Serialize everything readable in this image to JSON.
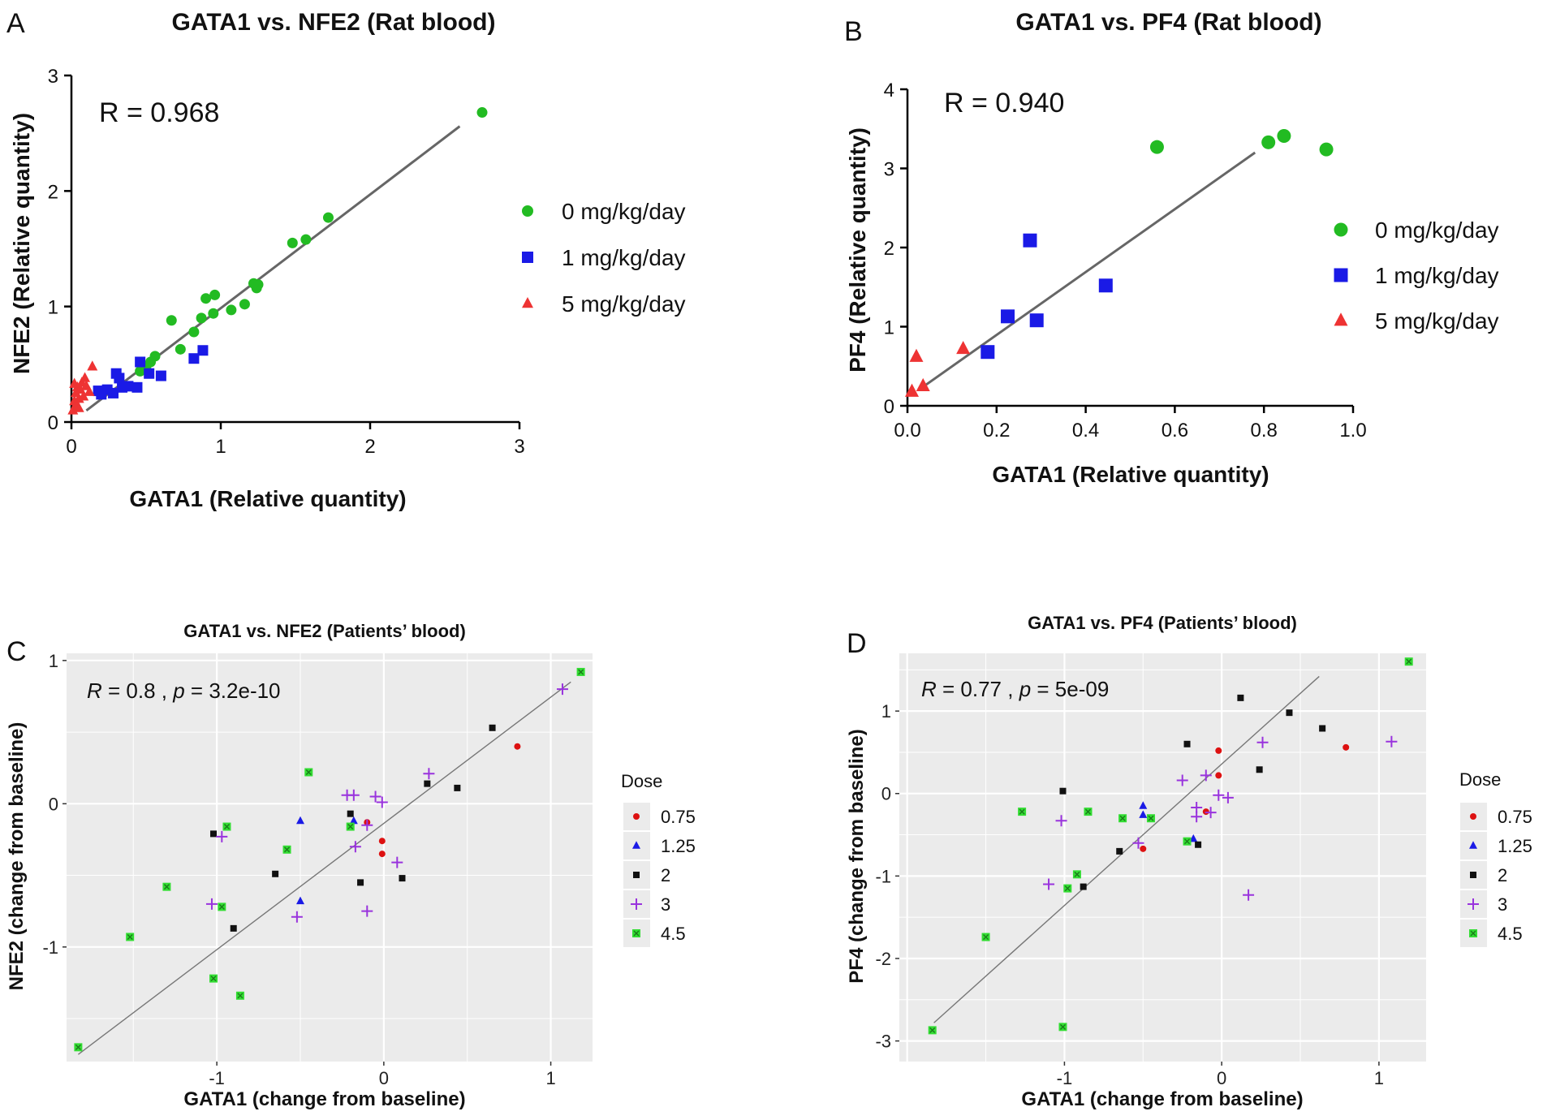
{
  "chart_data": [
    {
      "type": "scatter",
      "letter": "A",
      "title": "GATA1 vs. NFE2 (Rat blood)",
      "xlabel": "GATA1 (Relative quantity)",
      "ylabel": "NFE2 (Relative quantity)",
      "xlim": [
        0,
        3
      ],
      "ylim": [
        0,
        3
      ],
      "xticks": [
        "0",
        "1",
        "2",
        "3"
      ],
      "yticks": [
        "0",
        "1",
        "2",
        "3"
      ],
      "stat": "R = 0.968",
      "fit": [
        [
          0.1,
          0.1
        ],
        [
          2.6,
          2.56
        ]
      ],
      "series": [
        {
          "name": "0 mg/kg/day",
          "color": "#22bb22",
          "marker": "circle",
          "x": [
            2.75,
            1.72,
            1.57,
            1.48,
            1.25,
            1.24,
            1.22,
            1.16,
            1.07,
            0.96,
            0.95,
            0.9,
            0.87,
            0.82,
            0.73,
            0.67,
            0.56,
            0.53,
            0.5,
            0.46
          ],
          "y": [
            2.68,
            1.77,
            1.58,
            1.55,
            1.19,
            1.16,
            1.2,
            1.02,
            0.97,
            1.1,
            0.94,
            1.07,
            0.9,
            0.78,
            0.63,
            0.88,
            0.57,
            0.52,
            0.48,
            0.44
          ]
        },
        {
          "name": "1 mg/kg/day",
          "color": "#1a1ae6",
          "marker": "square",
          "x": [
            0.88,
            0.82,
            0.6,
            0.52,
            0.46,
            0.44,
            0.38,
            0.32,
            0.3,
            0.28,
            0.24,
            0.2,
            0.18,
            0.34
          ],
          "y": [
            0.62,
            0.55,
            0.4,
            0.42,
            0.52,
            0.3,
            0.31,
            0.38,
            0.42,
            0.25,
            0.28,
            0.24,
            0.27,
            0.3
          ]
        },
        {
          "name": "5 mg/kg/day",
          "color": "#ee3333",
          "marker": "triangle",
          "x": [
            0.01,
            0.02,
            0.03,
            0.03,
            0.04,
            0.05,
            0.06,
            0.07,
            0.08,
            0.09,
            0.1,
            0.12,
            0.14,
            0.02,
            0.05
          ],
          "y": [
            0.1,
            0.18,
            0.25,
            0.14,
            0.3,
            0.2,
            0.28,
            0.34,
            0.22,
            0.38,
            0.31,
            0.26,
            0.48,
            0.33,
            0.12
          ]
        }
      ]
    },
    {
      "type": "scatter",
      "letter": "B",
      "title": "GATA1 vs. PF4 (Rat blood)",
      "xlabel": "GATA1 (Relative quantity)",
      "ylabel": "PF4 (Relative quantity)",
      "xlim": [
        0,
        1.0
      ],
      "ylim": [
        0,
        4
      ],
      "xticks": [
        "0.0",
        "0.2",
        "0.4",
        "0.6",
        "0.8",
        "1.0"
      ],
      "yticks": [
        "0",
        "1",
        "2",
        "3",
        "4"
      ],
      "stat": "R = 0.940",
      "fit": [
        [
          0.03,
          0.22
        ],
        [
          0.78,
          3.2
        ]
      ],
      "series": [
        {
          "name": "0 mg/kg/day",
          "color": "#22bb22",
          "marker": "circle",
          "x": [
            0.56,
            0.81,
            0.845,
            0.94
          ],
          "y": [
            3.27,
            3.33,
            3.41,
            3.24
          ]
        },
        {
          "name": "1 mg/kg/day",
          "color": "#1a1ae6",
          "marker": "square",
          "x": [
            0.18,
            0.225,
            0.275,
            0.29,
            0.445
          ],
          "y": [
            0.68,
            1.13,
            2.09,
            1.08,
            1.52
          ]
        },
        {
          "name": "5 mg/kg/day",
          "color": "#ee3333",
          "marker": "triangle",
          "x": [
            0.01,
            0.02,
            0.035,
            0.125
          ],
          "y": [
            0.18,
            0.62,
            0.25,
            0.72
          ]
        }
      ]
    },
    {
      "type": "scatter",
      "letter": "C",
      "title": "GATA1 vs. NFE2 (Patients’ blood)",
      "xlabel": "GATA1 (change from baseline)",
      "ylabel": "NFE2 (change from baseline)",
      "xlim": [
        -1.9,
        1.25
      ],
      "ylim": [
        -1.8,
        1.05
      ],
      "xticks": [
        -1,
        0,
        1
      ],
      "xticklabels": [
        "-1",
        "0",
        "1"
      ],
      "yticks": [
        -1,
        0,
        1
      ],
      "yticklabels": [
        "-1",
        "0",
        "1"
      ],
      "stat_r": "R = 0.8 , ",
      "stat_p": "p = 3.2e-10",
      "fit": [
        [
          -1.83,
          -1.75
        ],
        [
          1.12,
          0.85
        ]
      ],
      "legend_title": "Dose",
      "series": [
        {
          "name": "0.75",
          "color": "#dd1111",
          "marker": "dot",
          "x": [
            0.8,
            -0.1,
            -0.01,
            -0.01
          ],
          "y": [
            0.4,
            -0.13,
            -0.26,
            -0.35
          ]
        },
        {
          "name": "1.25",
          "color": "#1a1ae6",
          "marker": "triangle",
          "x": [
            -0.5,
            -0.18,
            -0.5
          ],
          "y": [
            -0.12,
            -0.12,
            -0.68
          ]
        },
        {
          "name": "2",
          "color": "#111111",
          "marker": "square",
          "x": [
            0.65,
            0.26,
            0.44,
            -0.2,
            -1.02,
            -0.65,
            -0.9,
            -0.14,
            0.11
          ],
          "y": [
            0.53,
            0.14,
            0.11,
            -0.07,
            -0.21,
            -0.49,
            -0.87,
            -0.55,
            -0.52
          ]
        },
        {
          "name": "3",
          "color": "#9933dd",
          "marker": "plus",
          "x": [
            1.07,
            0.27,
            -0.22,
            -0.18,
            -0.05,
            -0.01,
            -0.1,
            -0.17,
            -0.97,
            -1.03,
            -0.52,
            -0.1,
            0.08
          ],
          "y": [
            0.8,
            0.21,
            0.06,
            0.06,
            0.05,
            0.01,
            -0.15,
            -0.3,
            -0.23,
            -0.7,
            -0.79,
            -0.75,
            -0.41
          ]
        },
        {
          "name": "4.5",
          "color": "#33dd33",
          "marker": "square-x",
          "x": [
            1.18,
            -0.45,
            -0.2,
            -0.94,
            -0.58,
            -1.3,
            -0.97,
            -1.52,
            -1.02,
            -0.86,
            -1.83
          ],
          "y": [
            0.92,
            0.22,
            -0.16,
            -0.16,
            -0.32,
            -0.58,
            -0.72,
            -0.93,
            -1.22,
            -1.34,
            -1.7
          ]
        }
      ]
    },
    {
      "type": "scatter",
      "letter": "D",
      "title": "GATA1 vs. PF4 (Patients’ blood)",
      "xlabel": "GATA1 (change from baseline)",
      "ylabel": "PF4 (change from baseline)",
      "xlim": [
        -2.05,
        1.3
      ],
      "ylim": [
        -3.25,
        1.7
      ],
      "xticks": [
        -1,
        0,
        1
      ],
      "xticklabels": [
        "-1",
        "0",
        "1"
      ],
      "yticks": [
        -3,
        -2,
        -1,
        0,
        1
      ],
      "yticklabels": [
        "-3",
        "-2",
        "-1",
        "0",
        "1"
      ],
      "stat_r": "R = 0.77 , ",
      "stat_p": "p = 5e-09",
      "fit": [
        [
          -1.83,
          -2.78
        ],
        [
          0.62,
          1.42
        ]
      ],
      "legend_title": "Dose",
      "series": [
        {
          "name": "0.75",
          "color": "#dd1111",
          "marker": "dot",
          "x": [
            0.79,
            -0.02,
            -0.02,
            -0.5,
            -0.1
          ],
          "y": [
            0.56,
            0.52,
            0.22,
            -0.67,
            -0.22
          ]
        },
        {
          "name": "1.25",
          "color": "#1a1ae6",
          "marker": "triangle",
          "x": [
            -0.5,
            -0.5,
            -0.18
          ],
          "y": [
            -0.15,
            -0.26,
            -0.55
          ]
        },
        {
          "name": "2",
          "color": "#111111",
          "marker": "square",
          "x": [
            0.12,
            0.43,
            0.64,
            0.24,
            -0.22,
            -1.01,
            -0.15,
            -0.65,
            -0.88
          ],
          "y": [
            1.16,
            0.98,
            0.79,
            0.29,
            0.6,
            0.03,
            -0.62,
            -0.7,
            -1.13
          ]
        },
        {
          "name": "3",
          "color": "#9933dd",
          "marker": "plus",
          "x": [
            1.08,
            0.26,
            -0.25,
            -0.1,
            -0.02,
            0.04,
            -0.16,
            -0.16,
            -1.02,
            -1.1,
            -0.53,
            -0.07,
            0.17
          ],
          "y": [
            0.63,
            0.62,
            0.16,
            0.22,
            -0.02,
            -0.05,
            -0.17,
            -0.28,
            -0.33,
            -1.1,
            -0.6,
            -0.23,
            -1.23
          ]
        },
        {
          "name": "4.5",
          "color": "#33dd33",
          "marker": "square-x",
          "x": [
            1.19,
            -1.27,
            -0.85,
            -0.63,
            -0.45,
            -0.22,
            -0.92,
            -0.98,
            -1.5,
            -1.01,
            -1.84
          ],
          "y": [
            1.6,
            -0.22,
            -0.22,
            -0.3,
            -0.3,
            -0.58,
            -0.98,
            -1.15,
            -1.74,
            -2.83,
            -2.87
          ]
        }
      ]
    }
  ]
}
